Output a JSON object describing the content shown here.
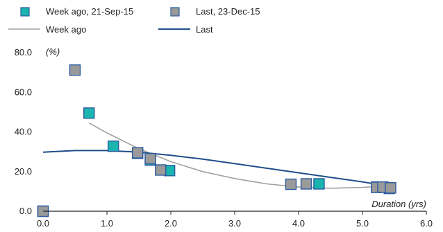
{
  "chart_data": {
    "type": "scatter",
    "xlim": [
      0,
      6
    ],
    "ylim": [
      0,
      80
    ],
    "x_ticks": [
      "0.0",
      "1.0",
      "2.0",
      "3.0",
      "4.0",
      "5.0",
      "6.0"
    ],
    "y_ticks": [
      "0.0",
      "20.0",
      "40.0",
      "60.0",
      "80.0"
    ],
    "ylabel": "(%)",
    "xlabel": "Duration (yrs)",
    "grid": false,
    "legend_position": "top",
    "series": [
      {
        "name": "Week ago, 21-Sep-15",
        "kind": "markers",
        "color": "#1bb5b0",
        "points": [
          [
            0.0,
            0.0
          ],
          [
            0.72,
            49.5
          ],
          [
            1.1,
            32.8
          ],
          [
            1.48,
            29.2
          ],
          [
            1.68,
            25.8
          ],
          [
            1.98,
            20.5
          ],
          [
            4.32,
            13.8
          ],
          [
            5.22,
            12.2
          ],
          [
            5.42,
            11.5
          ]
        ]
      },
      {
        "name": "Last, 23-Dec-15",
        "kind": "markers",
        "color": "#9a9a9a",
        "points": [
          [
            0.0,
            0.0
          ],
          [
            0.5,
            71.2
          ],
          [
            1.48,
            29.5
          ],
          [
            1.68,
            26.5
          ],
          [
            1.84,
            20.8
          ],
          [
            3.88,
            13.6
          ],
          [
            4.12,
            13.8
          ],
          [
            5.22,
            12.0
          ],
          [
            5.32,
            12.2
          ],
          [
            5.44,
            11.8
          ]
        ]
      },
      {
        "name": "Week ago",
        "kind": "line",
        "color": "#a0a0a0",
        "points": [
          [
            0.72,
            44.5
          ],
          [
            1.0,
            39.5
          ],
          [
            1.5,
            31.5
          ],
          [
            2.0,
            25.0
          ],
          [
            2.5,
            20.0
          ],
          [
            3.0,
            16.5
          ],
          [
            3.5,
            13.8
          ],
          [
            4.0,
            12.2
          ],
          [
            4.5,
            11.6
          ],
          [
            5.0,
            12.0
          ],
          [
            5.4,
            12.8
          ]
        ]
      },
      {
        "name": "Last",
        "kind": "line",
        "color": "#1f4e8c",
        "points": [
          [
            0.0,
            29.8
          ],
          [
            0.5,
            30.6
          ],
          [
            1.0,
            30.6
          ],
          [
            1.5,
            29.8
          ],
          [
            2.0,
            28.2
          ],
          [
            2.5,
            26.3
          ],
          [
            3.0,
            24.0
          ],
          [
            3.5,
            21.7
          ],
          [
            4.0,
            19.4
          ],
          [
            4.5,
            17.1
          ],
          [
            5.0,
            14.8
          ],
          [
            5.4,
            12.6
          ]
        ]
      }
    ]
  }
}
